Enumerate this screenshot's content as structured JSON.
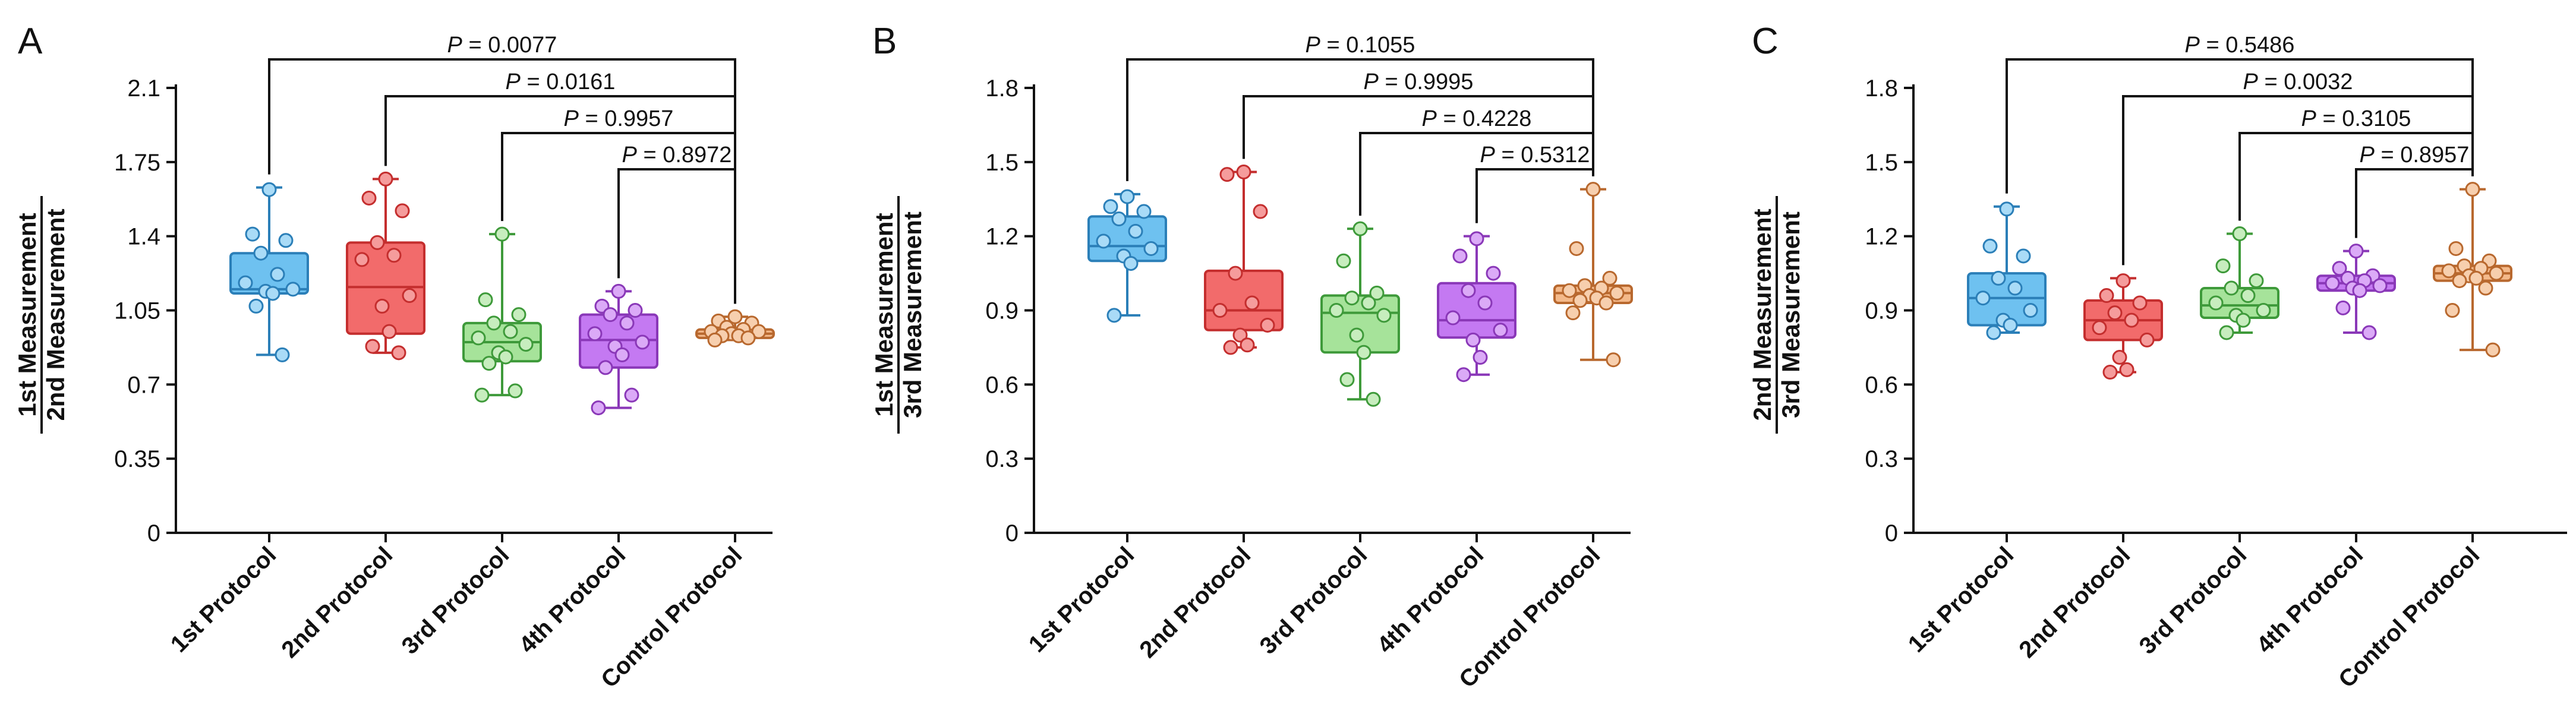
{
  "colors": {
    "1st Protocol": {
      "fill": "#6EC1F0",
      "stroke": "#2B7FB8",
      "point": "#A9DBF7"
    },
    "2nd Protocol": {
      "fill": "#F26B6B",
      "stroke": "#C42E2E",
      "point": "#F59C9C"
    },
    "3rd Protocol": {
      "fill": "#A6E39A",
      "stroke": "#3E9A3A",
      "point": "#C7EDBE"
    },
    "4th Protocol": {
      "fill": "#C479F2",
      "stroke": "#8A38B8",
      "point": "#DBAAF7"
    },
    "Control Protocol": {
      "fill": "#F4B98A",
      "stroke": "#B8682E",
      "point": "#F7CFAE"
    }
  },
  "chart_data": [
    {
      "panel": "A",
      "type": "box",
      "ylabel_numerator": "1st Measurement",
      "ylabel_denominator": "2nd Measurement",
      "ylim": [
        0,
        2.1
      ],
      "yticks": [
        0,
        0.35,
        0.7,
        1.05,
        1.4,
        1.75,
        2.1
      ],
      "ytick_labels": [
        "0",
        "0.35",
        "0.7",
        "1.05",
        "1.4",
        "1.75",
        "2.1"
      ],
      "categories": [
        "1st Protocol",
        "2nd Protocol",
        "3rd Protocol",
        "4th Protocol",
        "Control Protocol"
      ],
      "boxes": [
        {
          "min": 0.84,
          "q1": 1.13,
          "median": 1.15,
          "q3": 1.32,
          "max": 1.63
        },
        {
          "min": 0.85,
          "q1": 0.94,
          "median": 1.16,
          "q3": 1.37,
          "max": 1.67
        },
        {
          "min": 0.65,
          "q1": 0.81,
          "median": 0.9,
          "q3": 0.99,
          "max": 1.41
        },
        {
          "min": 0.59,
          "q1": 0.78,
          "median": 0.91,
          "q3": 1.03,
          "max": 1.14
        },
        {
          "min": 0.91,
          "q1": 0.92,
          "median": 0.94,
          "q3": 0.96,
          "max": 1.02
        }
      ],
      "points": [
        [
          1.62,
          1.41,
          1.38,
          1.32,
          1.22,
          1.18,
          1.15,
          1.14,
          1.13,
          1.07,
          0.84
        ],
        [
          1.67,
          1.58,
          1.52,
          1.37,
          1.31,
          1.29,
          1.12,
          1.07,
          0.95,
          0.88,
          0.85
        ],
        [
          1.41,
          1.1,
          1.03,
          0.99,
          0.95,
          0.92,
          0.89,
          0.85,
          0.83,
          0.8,
          0.67,
          0.65
        ],
        [
          1.14,
          1.07,
          1.05,
          1.03,
          0.99,
          0.94,
          0.9,
          0.88,
          0.84,
          0.78,
          0.65,
          0.59
        ],
        [
          1.02,
          1.0,
          0.99,
          0.97,
          0.96,
          0.95,
          0.95,
          0.94,
          0.93,
          0.93,
          0.92,
          0.91
        ]
      ],
      "comparisons": [
        {
          "from": 0,
          "to": 4,
          "text": "= 0.0077"
        },
        {
          "from": 1,
          "to": 4,
          "text": "= 0.0161"
        },
        {
          "from": 2,
          "to": 4,
          "text": "= 0.9957"
        },
        {
          "from": 3,
          "to": 4,
          "text": "= 0.8972"
        }
      ]
    },
    {
      "panel": "B",
      "type": "box",
      "ylabel_numerator": "1st Measurement",
      "ylabel_denominator": "3rd Measurement",
      "ylim": [
        0,
        1.8
      ],
      "yticks": [
        0,
        0.3,
        0.6,
        0.9,
        1.2,
        1.5,
        1.8
      ],
      "ytick_labels": [
        "0",
        "0.3",
        "0.6",
        "0.9",
        "1.2",
        "1.5",
        "1.8"
      ],
      "categories": [
        "1st Protocol",
        "2nd Protocol",
        "3rd Protocol",
        "4th Protocol",
        "Control Protocol"
      ],
      "boxes": [
        {
          "min": 0.88,
          "q1": 1.1,
          "median": 1.16,
          "q3": 1.28,
          "max": 1.37
        },
        {
          "min": 0.75,
          "q1": 0.82,
          "median": 0.9,
          "q3": 1.06,
          "max": 1.46
        },
        {
          "min": 0.54,
          "q1": 0.73,
          "median": 0.89,
          "q3": 0.96,
          "max": 1.23
        },
        {
          "min": 0.64,
          "q1": 0.79,
          "median": 0.86,
          "q3": 1.01,
          "max": 1.2
        },
        {
          "min": 0.7,
          "q1": 0.93,
          "median": 0.97,
          "q3": 1.0,
          "max": 1.39
        }
      ],
      "points": [
        [
          1.36,
          1.32,
          1.3,
          1.27,
          1.22,
          1.18,
          1.15,
          1.12,
          1.09,
          0.88
        ],
        [
          1.46,
          1.45,
          1.3,
          1.05,
          0.93,
          0.9,
          0.84,
          0.8,
          0.76,
          0.75
        ],
        [
          1.23,
          1.1,
          0.97,
          0.95,
          0.93,
          0.9,
          0.88,
          0.8,
          0.73,
          0.62,
          0.54
        ],
        [
          1.19,
          1.12,
          1.05,
          0.98,
          0.93,
          0.87,
          0.82,
          0.78,
          0.71,
          0.64
        ],
        [
          1.39,
          1.15,
          1.03,
          1.0,
          0.99,
          0.98,
          0.97,
          0.96,
          0.95,
          0.94,
          0.93,
          0.89,
          0.7
        ]
      ],
      "comparisons": [
        {
          "from": 0,
          "to": 4,
          "text": "= 0.1055"
        },
        {
          "from": 1,
          "to": 4,
          "text": "= 0.9995"
        },
        {
          "from": 2,
          "to": 4,
          "text": "= 0.4228"
        },
        {
          "from": 3,
          "to": 4,
          "text": "= 0.5312"
        }
      ]
    },
    {
      "panel": "C",
      "type": "box",
      "ylabel_numerator": "2nd Measurement",
      "ylabel_denominator": "3rd Measurement",
      "ylim": [
        0,
        1.8
      ],
      "yticks": [
        0,
        0.3,
        0.6,
        0.9,
        1.2,
        1.5,
        1.8
      ],
      "ytick_labels": [
        "0",
        "0.3",
        "0.6",
        "0.9",
        "1.2",
        "1.5",
        "1.8"
      ],
      "categories": [
        "1st Protocol",
        "2nd Protocol",
        "3rd Protocol",
        "4th Protocol",
        "Control Protocol"
      ],
      "boxes": [
        {
          "min": 0.81,
          "q1": 0.84,
          "median": 0.95,
          "q3": 1.05,
          "max": 1.32
        },
        {
          "min": 0.65,
          "q1": 0.78,
          "median": 0.86,
          "q3": 0.94,
          "max": 1.03
        },
        {
          "min": 0.81,
          "q1": 0.87,
          "median": 0.92,
          "q3": 0.99,
          "max": 1.21
        },
        {
          "min": 0.81,
          "q1": 0.98,
          "median": 1.01,
          "q3": 1.04,
          "max": 1.14
        },
        {
          "min": 0.74,
          "q1": 1.02,
          "median": 1.05,
          "q3": 1.08,
          "max": 1.39
        }
      ],
      "points": [
        [
          1.31,
          1.16,
          1.12,
          1.03,
          0.99,
          0.95,
          0.9,
          0.86,
          0.84,
          0.81
        ],
        [
          1.02,
          0.96,
          0.93,
          0.89,
          0.86,
          0.83,
          0.78,
          0.71,
          0.66,
          0.65
        ],
        [
          1.21,
          1.08,
          1.02,
          0.99,
          0.96,
          0.93,
          0.9,
          0.88,
          0.86,
          0.81
        ],
        [
          1.14,
          1.07,
          1.04,
          1.03,
          1.02,
          1.01,
          1.0,
          0.99,
          0.98,
          0.91,
          0.81
        ],
        [
          1.39,
          1.15,
          1.1,
          1.08,
          1.07,
          1.06,
          1.05,
          1.04,
          1.03,
          1.02,
          0.99,
          0.9,
          0.74
        ]
      ],
      "comparisons": [
        {
          "from": 0,
          "to": 4,
          "text": "= 0.5486"
        },
        {
          "from": 1,
          "to": 4,
          "text": "= 0.0032"
        },
        {
          "from": 2,
          "to": 4,
          "text": "= 0.3105"
        },
        {
          "from": 3,
          "to": 4,
          "text": "= 0.8957"
        }
      ]
    }
  ]
}
